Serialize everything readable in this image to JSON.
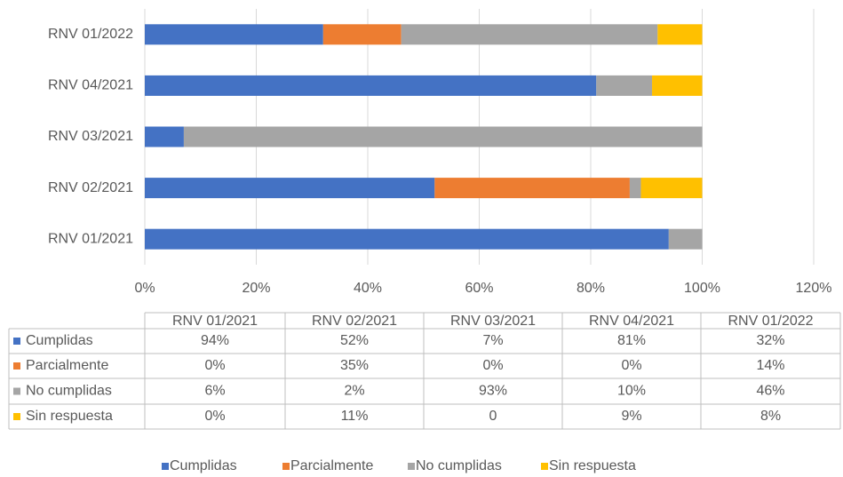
{
  "chart_data": {
    "type": "stacked_bar_horizontal",
    "categories": [
      "RNV 01/2021",
      "RNV 02/2021",
      "RNV 03/2021",
      "RNV 04/2021",
      "RNV 01/2022"
    ],
    "series": [
      {
        "name": "Cumplidas",
        "color": "#4472c4",
        "values": [
          94,
          52,
          7,
          81,
          32
        ],
        "value_labels": [
          "94%",
          "52%",
          "7%",
          "81%",
          "32%"
        ]
      },
      {
        "name": "Parcialmente",
        "color": "#ed7d31",
        "values": [
          0,
          35,
          0,
          0,
          14
        ],
        "value_labels": [
          "0%",
          "35%",
          "0%",
          "0%",
          "14%"
        ]
      },
      {
        "name": "No cumplidas",
        "color": "#a5a5a5",
        "values": [
          6,
          2,
          93,
          10,
          46
        ],
        "value_labels": [
          "6%",
          "2%",
          "93%",
          "10%",
          "46%"
        ]
      },
      {
        "name": "Sin respuesta",
        "color": "#ffc000",
        "values": [
          0,
          11,
          0,
          9,
          8
        ],
        "value_labels": [
          "0%",
          "11%",
          "0",
          "9%",
          "8%"
        ]
      }
    ],
    "xlim": [
      0,
      120
    ],
    "xticks": [
      {
        "value": 0,
        "label": "0%"
      },
      {
        "value": 20,
        "label": "20%"
      },
      {
        "value": 40,
        "label": "40%"
      },
      {
        "value": 60,
        "label": "60%"
      },
      {
        "value": 80,
        "label": "80%"
      },
      {
        "value": 100,
        "label": "100%"
      },
      {
        "value": 120,
        "label": "120%"
      }
    ],
    "grid": true,
    "legend": "bottom"
  }
}
